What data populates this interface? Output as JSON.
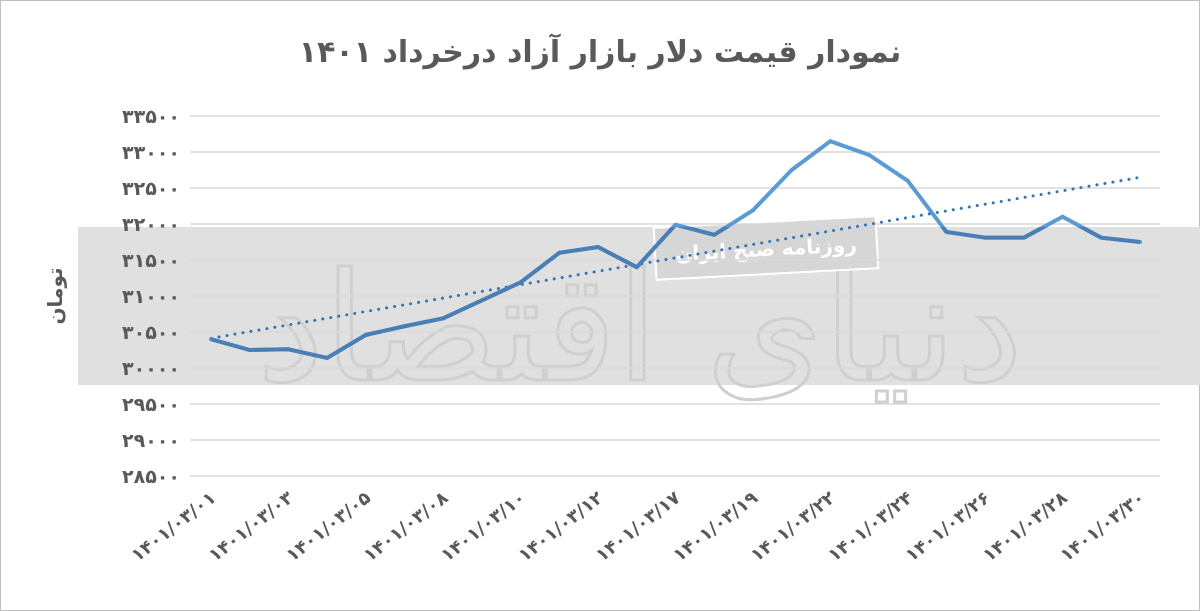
{
  "chart_data": {
    "type": "line",
    "title": "نمودار قیمت دلار بازار آزاد درخرداد ۱۴۰۱",
    "ylabel": "تومان",
    "xlabel": "",
    "ylim": [
      28500,
      33500
    ],
    "yticks": [
      28500,
      29000,
      29500,
      30000,
      30500,
      31000,
      31500,
      32000,
      32500,
      33000,
      33500
    ],
    "ytick_labels": [
      "۲۸۵۰۰",
      "۲۹۰۰۰",
      "۲۹۵۰۰",
      "۳۰۰۰۰",
      "۳۰۵۰۰",
      "۳۱۰۰۰",
      "۳۱۵۰۰",
      "۳۲۰۰۰",
      "۳۲۵۰۰",
      "۳۳۰۰۰",
      "۳۳۵۰۰"
    ],
    "categories": [
      "۱۴۰۱/۰۳/۰۱",
      "",
      "۱۴۰۱/۰۳/۰۳",
      "",
      "۱۴۰۱/۰۳/۰۵",
      "",
      "۱۴۰۱/۰۳/۰۸",
      "",
      "۱۴۰۱/۰۳/۱۰",
      "",
      "۱۴۰۱/۰۳/۱۲",
      "",
      "۱۴۰۱/۰۳/۱۷",
      "",
      "۱۴۰۱/۰۳/۱۹",
      "",
      "۱۴۰۱/۰۳/۲۲",
      "",
      "۱۴۰۱/۰۳/۲۴",
      "",
      "۱۴۰۱/۰۳/۲۶",
      "",
      "۱۴۰۱/۰۳/۲۸",
      "",
      "۱۴۰۱/۰۳/۳۰"
    ],
    "series": [
      {
        "values": [
          30400,
          30250,
          30260,
          30140,
          30460,
          30580,
          30690,
          30940,
          31190,
          31600,
          31680,
          31400,
          31990,
          31850,
          32190,
          32750,
          33150,
          32960,
          32600,
          31890,
          31810,
          31810,
          32100,
          31810,
          31750
        ],
        "color": "#5b9bd5"
      }
    ],
    "trendline": {
      "type": "linear",
      "style": "dotted",
      "color": "#2e75b6"
    },
    "grid": true,
    "legend": "none"
  },
  "watermark": {
    "logo": "دنیای اقتصاد",
    "text": "روزنامه صبح ایران"
  }
}
